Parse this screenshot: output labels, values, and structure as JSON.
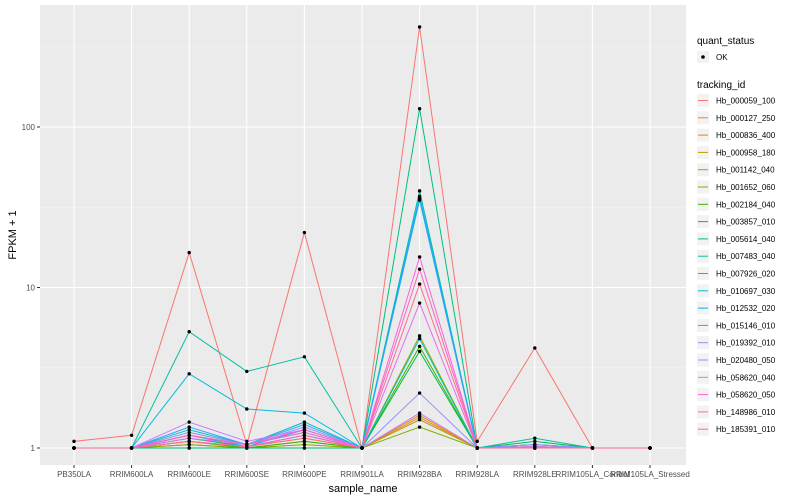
{
  "chart_data": {
    "type": "line",
    "y_scale": "log10",
    "y_transform": "value + 1",
    "xlabel": "sample_name",
    "ylabel": "FPKM + 1",
    "y_ticks": [
      1,
      10,
      100
    ],
    "y_tick_labels": [
      "1",
      "10",
      "100"
    ],
    "ylim": [
      0.86,
      580
    ],
    "grid": true,
    "categories": [
      "PB350LA",
      "RRIM600LA",
      "RRIM600LE",
      "RRIM600SE",
      "RRIM600PE",
      "RRIM901LA",
      "RRIM928BA",
      "RRIM928LA",
      "RRIM928LE",
      "RRIM105LA_Control",
      "RRIM105LA_Stressed"
    ],
    "legend_position": "right",
    "legend_shape": {
      "title": "quant_status",
      "entries": [
        "OK"
      ]
    },
    "legend_color_title": "tracking_id",
    "series": [
      {
        "name": "Hb_000059_100",
        "color": "#F8766D",
        "values": [
          1.1,
          1.2,
          16.5,
          1.05,
          22.0,
          1.0,
          420.0,
          1.1,
          4.2,
          1.0,
          1.0
        ]
      },
      {
        "name": "Hb_000127_250",
        "color": "#EA8331",
        "values": [
          1.0,
          1.0,
          1.05,
          1.0,
          1.1,
          1.0,
          1.55,
          1.0,
          1.0,
          1.0,
          1.0
        ]
      },
      {
        "name": "Hb_000836_400",
        "color": "#D89000",
        "values": [
          1.0,
          1.0,
          1.1,
          1.02,
          1.15,
          1.0,
          1.6,
          1.0,
          1.02,
          1.0,
          1.0
        ]
      },
      {
        "name": "Hb_000958_180",
        "color": "#C09B00",
        "values": [
          1.0,
          1.0,
          1.0,
          1.0,
          1.0,
          1.0,
          1.5,
          1.0,
          1.0,
          1.0,
          1.0
        ]
      },
      {
        "name": "Hb_001142_040",
        "color": "#A3A500",
        "values": [
          1.0,
          1.0,
          1.2,
          1.05,
          1.25,
          1.0,
          5.0,
          1.0,
          1.05,
          1.0,
          1.0
        ]
      },
      {
        "name": "Hb_001652_060",
        "color": "#7CAE00",
        "values": [
          1.0,
          1.0,
          1.05,
          1.0,
          1.05,
          1.0,
          1.35,
          1.0,
          1.0,
          1.0,
          1.0
        ]
      },
      {
        "name": "Hb_002184_040",
        "color": "#39B600",
        "values": [
          1.0,
          1.0,
          1.1,
          1.0,
          1.1,
          1.0,
          4.3,
          1.0,
          1.05,
          1.0,
          1.0
        ]
      },
      {
        "name": "Hb_003857_010",
        "color": "#00BB4E",
        "values": [
          1.0,
          1.0,
          1.15,
          1.02,
          1.2,
          1.0,
          4.0,
          1.0,
          1.1,
          1.0,
          1.0
        ]
      },
      {
        "name": "Hb_005614_040",
        "color": "#00BF7D",
        "values": [
          1.0,
          1.0,
          1.0,
          1.0,
          1.0,
          1.0,
          130.0,
          1.0,
          1.0,
          1.0,
          1.0
        ]
      },
      {
        "name": "Hb_007483_040",
        "color": "#00C1A3",
        "values": [
          1.0,
          1.0,
          5.3,
          3.0,
          3.7,
          1.0,
          40.0,
          1.0,
          1.15,
          1.0,
          1.0
        ]
      },
      {
        "name": "Hb_007926_020",
        "color": "#00BFC4",
        "values": [
          1.0,
          1.0,
          1.3,
          1.05,
          1.45,
          1.0,
          4.8,
          1.0,
          1.02,
          1.0,
          1.0
        ]
      },
      {
        "name": "Hb_010697_030",
        "color": "#00BAE0",
        "values": [
          1.0,
          1.0,
          2.9,
          1.75,
          1.65,
          1.0,
          36.0,
          1.0,
          1.05,
          1.0,
          1.0
        ]
      },
      {
        "name": "Hb_012532_020",
        "color": "#00B0F6",
        "values": [
          1.0,
          1.0,
          1.2,
          1.02,
          1.3,
          1.0,
          37.0,
          1.0,
          1.0,
          1.0,
          1.0
        ]
      },
      {
        "name": "Hb_015146_010",
        "color": "#35A2FF",
        "values": [
          1.0,
          1.0,
          1.35,
          1.05,
          1.4,
          1.0,
          35.0,
          1.0,
          1.0,
          1.0,
          1.0
        ]
      },
      {
        "name": "Hb_019392_010",
        "color": "#9590FF",
        "values": [
          1.0,
          1.0,
          1.25,
          1.05,
          1.35,
          1.0,
          2.2,
          1.0,
          1.05,
          1.0,
          1.0
        ]
      },
      {
        "name": "Hb_020480_050",
        "color": "#C77CFF",
        "values": [
          1.0,
          1.0,
          1.45,
          1.1,
          1.3,
          1.0,
          1.65,
          1.0,
          1.0,
          1.0,
          1.0
        ]
      },
      {
        "name": "Hb_058620_040",
        "color": "#E76BF3",
        "values": [
          1.0,
          1.0,
          1.15,
          1.05,
          1.25,
          1.0,
          8.0,
          1.0,
          1.02,
          1.0,
          1.0
        ]
      },
      {
        "name": "Hb_058620_050",
        "color": "#FA62DB",
        "values": [
          1.0,
          1.0,
          1.1,
          1.02,
          1.2,
          1.0,
          15.5,
          1.0,
          1.0,
          1.0,
          1.0
        ]
      },
      {
        "name": "Hb_148986_010",
        "color": "#FF62BC",
        "values": [
          1.0,
          1.0,
          1.2,
          1.05,
          1.3,
          1.0,
          13.0,
          1.0,
          1.0,
          1.0,
          1.0
        ]
      },
      {
        "name": "Hb_185391_010",
        "color": "#FF6C91",
        "values": [
          1.0,
          1.0,
          1.1,
          1.02,
          1.15,
          1.0,
          10.5,
          1.0,
          1.0,
          1.0,
          1.0
        ]
      }
    ]
  }
}
